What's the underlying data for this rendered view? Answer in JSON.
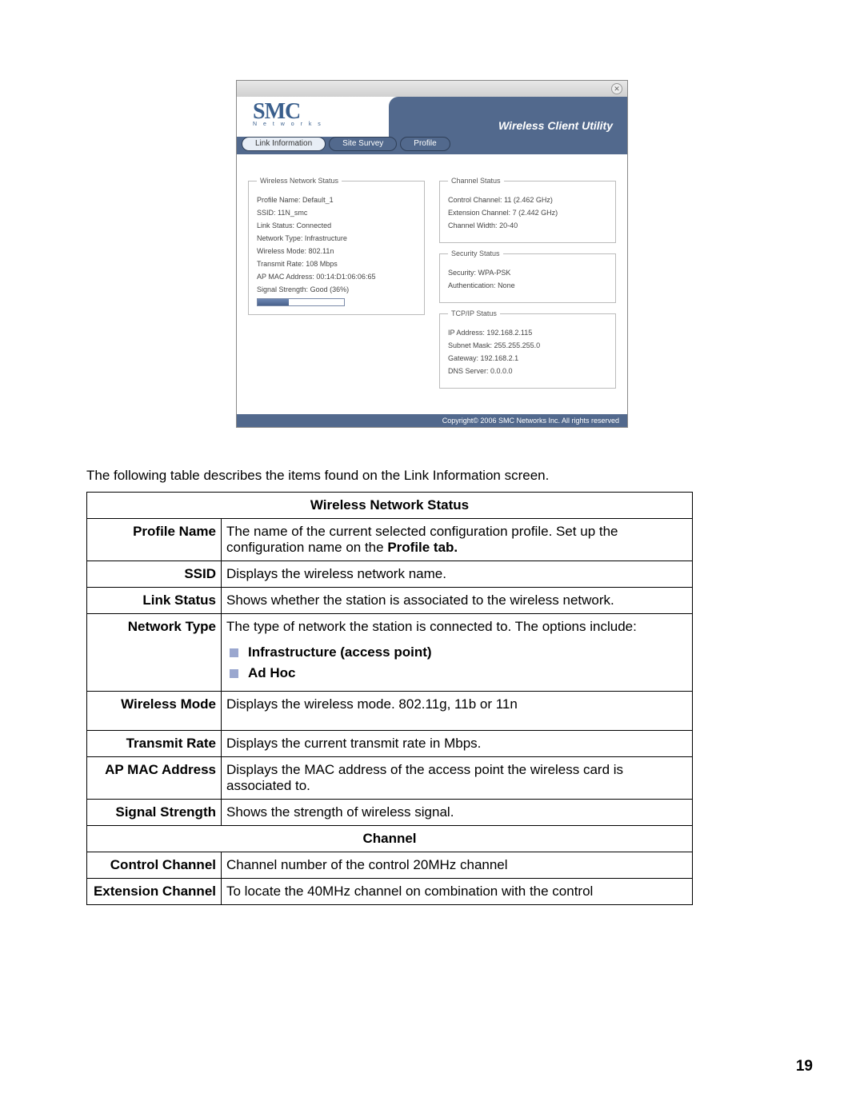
{
  "app": {
    "utility_title": "Wireless Client Utility",
    "logo_text": "SMC",
    "logo_sub": "N e t w o r k s",
    "tabs": {
      "link_info": "Link Information",
      "site_survey": "Site Survey",
      "profile": "Profile"
    },
    "wireless_status": {
      "legend": "Wireless Network Status",
      "profile_name_label": "Profile Name:",
      "profile_name": "Default_1",
      "ssid_label": "SSID:",
      "ssid": "11N_smc",
      "link_status_label": "Link Status:",
      "link_status": "Connected",
      "network_type_label": "Network Type:",
      "network_type": "Infrastructure",
      "wireless_mode_label": "Wireless Mode:",
      "wireless_mode": "802.11n",
      "transmit_rate_label": "Transmit Rate:",
      "transmit_rate": "108 Mbps",
      "ap_mac_label": "AP MAC Address:",
      "ap_mac": "00:14:D1:06:06:65",
      "signal_label": "Signal Strength:",
      "signal": "Good (36%)",
      "signal_pct": 36
    },
    "channel_status": {
      "legend": "Channel Status",
      "control_label": "Control Channel:",
      "control": "11 (2.462 GHz)",
      "extension_label": "Extension Channel:",
      "extension": "7 (2.442 GHz)",
      "width_label": "Channel Width:",
      "width": "20-40"
    },
    "security_status": {
      "legend": "Security Status",
      "security_label": "Security:",
      "security": "WPA-PSK",
      "auth_label": "Authentication:",
      "auth": "None"
    },
    "tcpip_status": {
      "legend": "TCP/IP Status",
      "ip_label": "IP Address:",
      "ip": "192.168.2.115",
      "mask_label": "Subnet Mask:",
      "mask": "255.255.255.0",
      "gw_label": "Gateway:",
      "gw": "192.168.2.1",
      "dns_label": "DNS Server:",
      "dns": "0.0.0.0"
    },
    "footer": "Copyright© 2006 SMC Networks Inc. All rights reserved"
  },
  "intro": "The following table describes the items found on the Link Information screen.",
  "table": {
    "section1": "Wireless Network Status",
    "rows": [
      {
        "label": "Profile Name",
        "desc_a": "The name of the current selected configuration profile.   Set up the configuration name on the ",
        "desc_bold": "Profile tab."
      },
      {
        "label": "SSID",
        "desc": "Displays the wireless network name."
      },
      {
        "label": "Link Status",
        "desc": "Shows whether the station is associated to the wireless network."
      },
      {
        "label": "Network Type",
        "desc_pre": "The type of network the station is connected to.   The options include:",
        "bullets": [
          "Infrastructure (access point)",
          "Ad Hoc"
        ]
      },
      {
        "label": "Wireless Mode",
        "desc": "Displays the wireless mode. 802.11g, 11b or 11n"
      },
      {
        "label": "Transmit Rate",
        "desc": "Displays the current transmit rate in Mbps."
      },
      {
        "label": "AP MAC Address",
        "desc": "Displays the MAC address of the access point the wireless card is associated to."
      },
      {
        "label": "Signal  Strength",
        "desc": "Shows the strength of wireless signal."
      }
    ],
    "section2": "Channel",
    "rows2": [
      {
        "label": "Control  Channel",
        "desc": "Channel number of the control 20MHz channel"
      },
      {
        "label": "Extension  Channel",
        "desc": "To locate the 40MHz channel on combination with the control"
      }
    ]
  },
  "page_number": "19",
  "colors": {
    "header_blue": "#52698d",
    "logo_blue": "#3a5f8d",
    "bullet_square": "#9aa7cf"
  }
}
